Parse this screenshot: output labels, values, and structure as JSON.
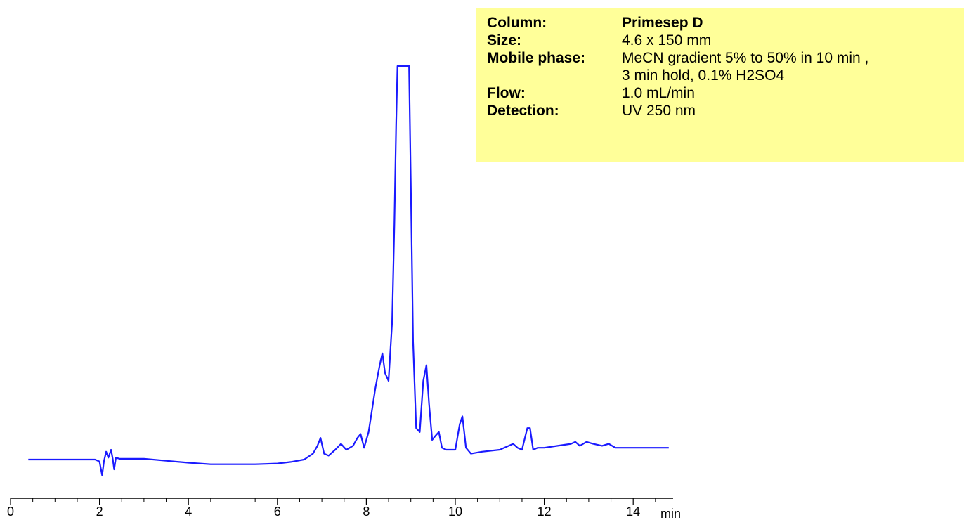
{
  "info": {
    "rows": [
      {
        "key": "Column:",
        "value": "Primesep D"
      },
      {
        "key": "Size:",
        "value": "4.6 x 150 mm"
      },
      {
        "key": "Mobile phase:",
        "value": "MeCN gradient 5% to 50% in 10 min ,"
      },
      {
        "key": "",
        "value": "3 min hold, 0.1% H2SO4"
      },
      {
        "key": "Flow:",
        "value": "1.0 mL/min"
      },
      {
        "key": "Detection:",
        "value": "UV 250 nm"
      }
    ]
  },
  "chart_data": {
    "type": "line",
    "title": "",
    "xlabel": "min",
    "ylabel": "",
    "xlim": [
      0,
      15
    ],
    "ylim": [
      0,
      100
    ],
    "x_ticks": [
      0,
      2,
      4,
      6,
      8,
      10,
      12,
      14
    ],
    "x_tick_labels": [
      "0",
      "2",
      "4",
      "6",
      "8",
      "10",
      "12",
      "14"
    ],
    "grid": false,
    "line_color": "#1a1aff",
    "series": [
      {
        "x": [
          0.4,
          1.9,
          2.0,
          2.06,
          2.1,
          2.15,
          2.2,
          2.26,
          2.3,
          2.33,
          2.37,
          2.45,
          3.0,
          3.5,
          4.0,
          4.5,
          5.0,
          5.5,
          6.0,
          6.3,
          6.6,
          6.8,
          6.9,
          6.97,
          7.05,
          7.15,
          7.3,
          7.43,
          7.55,
          7.7,
          7.8,
          7.87,
          7.95,
          8.05,
          8.2,
          8.3,
          8.36,
          8.42,
          8.5,
          8.58,
          8.63,
          8.67,
          8.7,
          8.75,
          8.82,
          8.92,
          8.96,
          9.0,
          9.05,
          9.12,
          9.2,
          9.28,
          9.35,
          9.41,
          9.48,
          9.55,
          9.63,
          9.7,
          9.8,
          10.0,
          10.1,
          10.16,
          10.24,
          10.35,
          10.6,
          11.0,
          11.3,
          11.4,
          11.5,
          11.62,
          11.68,
          11.75,
          11.85,
          12.0,
          12.3,
          12.6,
          12.7,
          12.8,
          12.95,
          13.1,
          13.3,
          13.45,
          13.6,
          13.8,
          14.0,
          14.3,
          14.5,
          14.8
        ],
        "y": [
          0.0,
          0.0,
          -0.5,
          -4.0,
          -0.5,
          2.0,
          0.5,
          2.5,
          0.0,
          -2.5,
          0.5,
          0.2,
          0.2,
          -0.3,
          -0.8,
          -1.2,
          -1.2,
          -1.2,
          -1.0,
          -0.6,
          0.0,
          1.5,
          3.5,
          5.5,
          1.5,
          1.0,
          2.5,
          4.0,
          2.5,
          3.5,
          5.5,
          6.5,
          3.0,
          7.0,
          18.0,
          24.0,
          27.0,
          22.0,
          20.0,
          35.0,
          60.0,
          85.0,
          100.0,
          100.0,
          100.0,
          100.0,
          100.0,
          70.0,
          30.0,
          8.0,
          7.0,
          20.0,
          24.0,
          14.0,
          5.0,
          6.0,
          7.0,
          3.0,
          2.5,
          2.5,
          9.0,
          11.0,
          3.0,
          1.5,
          2.0,
          2.5,
          4.0,
          3.0,
          2.5,
          8.0,
          8.0,
          2.5,
          3.0,
          3.0,
          3.5,
          4.0,
          4.5,
          3.5,
          4.5,
          4.0,
          3.5,
          4.0,
          3.0,
          3.0,
          3.0,
          3.0,
          3.0,
          3.0
        ]
      }
    ]
  }
}
